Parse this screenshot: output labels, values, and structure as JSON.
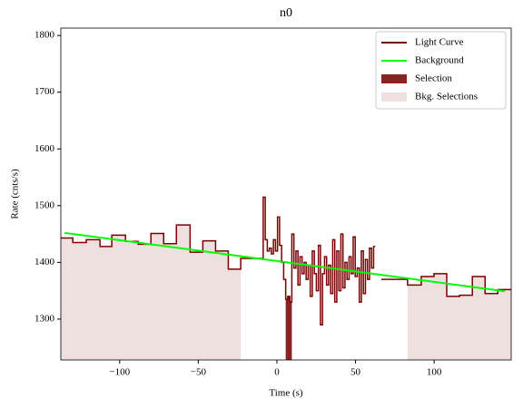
{
  "chart_data": {
    "type": "line",
    "title": "n0",
    "x_label": "Time (s)",
    "y_label": "Rate (cnts/s)",
    "xlim": [
      -137.4,
      149
    ],
    "ylim": [
      1228,
      1813
    ],
    "xticks": [
      {
        "value": -100,
        "label": "−100"
      },
      {
        "value": -50,
        "label": "−50"
      },
      0,
      50,
      100
    ],
    "yticks": [
      1300,
      1400,
      1500,
      1600,
      1700,
      1800
    ],
    "series": [
      {
        "name": "Light Curve",
        "color": "#7a0000",
        "x": [
          -137.4,
          -129.8,
          -121.2,
          -112.5,
          -105,
          -96.3,
          -88.2,
          -80.1,
          -72,
          -63.9,
          -55.2,
          -47.1,
          -39,
          -30.9,
          -23,
          -8.7,
          -7.4,
          -6.1,
          -4.8,
          -3.5,
          -2.2,
          -0.9,
          0.4,
          1.7,
          3.0,
          4.3,
          5.6,
          6.9,
          8.2,
          9.5,
          10.8,
          12.1,
          13.4,
          14.7,
          16.0,
          17.3,
          18.6,
          19.9,
          21.2,
          22.5,
          23.8,
          25.1,
          26.4,
          27.7,
          29.0,
          30.3,
          31.6,
          32.9,
          34.2,
          35.5,
          36.8,
          38.1,
          39.4,
          40.7,
          42.0,
          43.3,
          44.6,
          45.9,
          47.2,
          48.5,
          49.8,
          51.1,
          52.4,
          53.7,
          55.0,
          56.3,
          57.6,
          58.9,
          60.2,
          61.5,
          62.5,
          66.4,
          83.1,
          91.8,
          99.9,
          108,
          116.2,
          124.3,
          132.4,
          140.5
        ],
        "values": [
          1443,
          1435,
          1440,
          1428,
          1448,
          1437,
          1432,
          1451,
          1433,
          1466,
          1418,
          1438,
          1420,
          1388,
          1407,
          1515,
          1440,
          1420,
          1425,
          1415,
          1440,
          1420,
          1480,
          1430,
          1400,
          1370,
          1335,
          1340,
          1330,
          1450,
          1390,
          1420,
          1360,
          1410,
          1380,
          1400,
          1370,
          1395,
          1340,
          1420,
          1380,
          1350,
          1430,
          1290,
          1380,
          1410,
          1360,
          1395,
          1345,
          1440,
          1330,
          1420,
          1350,
          1450,
          1355,
          1400,
          1370,
          1410,
          1380,
          1445,
          1375,
          1390,
          1330,
          1420,
          1345,
          1405,
          1370,
          1425,
          1390,
          1428,
          null,
          1370,
          1360,
          1375,
          1380,
          1340,
          1342,
          1375,
          1345,
          1352
        ]
      },
      {
        "name": "Background",
        "color": "#00ff00",
        "x": [
          -135,
          145
        ],
        "values": [
          1452,
          1349
        ]
      }
    ],
    "selection": {
      "name": "Selection",
      "color": "#8b2323",
      "range": [
        5.6,
        9.5
      ]
    },
    "bkg_selections": {
      "name": "Bkg. Selections",
      "color": "#efe0e0",
      "ranges": [
        [
          -137.4,
          -23
        ],
        [
          83.1,
          149
        ]
      ]
    }
  }
}
